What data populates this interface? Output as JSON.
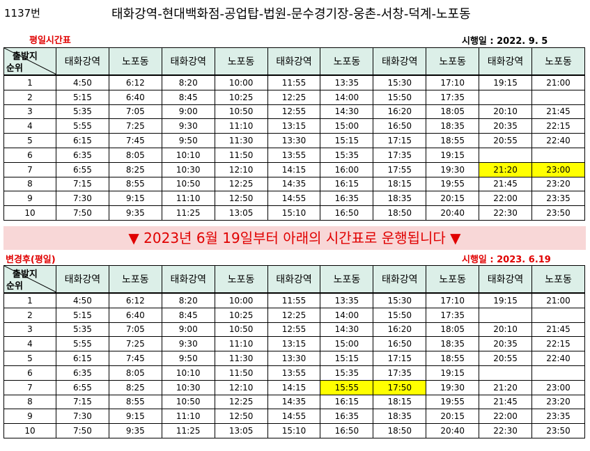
{
  "route_number": "1137번",
  "route_stops": "태화강역-현대백화점-공업탑-법원-문수경기장-웅촌-서창-덕계-노포동",
  "weekday_table": {
    "label": "평일시간표",
    "effective": "시행일 : 2022. 9. 5",
    "corner_top": "출발지",
    "corner_bottom": "순위",
    "headers": [
      "태화강역",
      "노포동",
      "태화강역",
      "노포동",
      "태화강역",
      "노포동",
      "태화강역",
      "노포동",
      "태화강역",
      "노포동"
    ],
    "rows": [
      [
        "1",
        "4:50",
        "6:12",
        "8:20",
        "10:00",
        "11:55",
        "13:35",
        "15:30",
        "17:10",
        "19:15",
        "21:00"
      ],
      [
        "2",
        "5:15",
        "6:40",
        "8:45",
        "10:25",
        "12:25",
        "14:00",
        "15:50",
        "17:35",
        "",
        ""
      ],
      [
        "3",
        "5:35",
        "7:05",
        "9:00",
        "10:50",
        "12:55",
        "14:30",
        "16:20",
        "18:05",
        "20:10",
        "21:45"
      ],
      [
        "4",
        "5:55",
        "7:25",
        "9:30",
        "11:10",
        "13:15",
        "15:00",
        "16:50",
        "18:35",
        "20:35",
        "22:15"
      ],
      [
        "5",
        "6:15",
        "7:45",
        "9:50",
        "11:30",
        "13:30",
        "15:15",
        "17:15",
        "18:55",
        "20:55",
        "22:40"
      ],
      [
        "6",
        "6:35",
        "8:05",
        "10:10",
        "11:50",
        "13:55",
        "15:35",
        "17:35",
        "19:15",
        "",
        ""
      ],
      [
        "7",
        "6:55",
        "8:25",
        "10:30",
        "12:10",
        "14:15",
        "16:00",
        "17:55",
        "19:30",
        "21:20",
        "23:00"
      ],
      [
        "8",
        "7:15",
        "8:55",
        "10:50",
        "12:25",
        "14:35",
        "16:15",
        "18:15",
        "19:55",
        "21:45",
        "23:20"
      ],
      [
        "9",
        "7:30",
        "9:15",
        "11:10",
        "12:50",
        "14:55",
        "16:35",
        "18:35",
        "20:15",
        "22:00",
        "23:35"
      ],
      [
        "10",
        "7:50",
        "9:35",
        "11:25",
        "13:05",
        "15:10",
        "16:50",
        "18:50",
        "20:40",
        "22:30",
        "23:50"
      ]
    ],
    "highlights": [
      [
        6,
        9
      ],
      [
        6,
        10
      ]
    ]
  },
  "notice": "▼ 2023년 6월 19일부터 아래의 시간표로 운행됩니다 ▼",
  "changed_table": {
    "label": "변경후(평일)",
    "effective": "시행일 : 2023. 6.19",
    "corner_top": "출발지",
    "corner_bottom": "순위",
    "headers": [
      "태화강역",
      "노포동",
      "태화강역",
      "노포동",
      "태화강역",
      "노포동",
      "태화강역",
      "노포동",
      "태화강역",
      "노포동"
    ],
    "rows": [
      [
        "1",
        "4:50",
        "6:12",
        "8:20",
        "10:00",
        "11:55",
        "13:35",
        "15:30",
        "17:10",
        "19:15",
        "21:00"
      ],
      [
        "2",
        "5:15",
        "6:40",
        "8:45",
        "10:25",
        "12:25",
        "14:00",
        "15:50",
        "17:35",
        "",
        ""
      ],
      [
        "3",
        "5:35",
        "7:05",
        "9:00",
        "10:50",
        "12:55",
        "14:30",
        "16:20",
        "18:05",
        "20:10",
        "21:45"
      ],
      [
        "4",
        "5:55",
        "7:25",
        "9:30",
        "11:10",
        "13:15",
        "15:00",
        "16:50",
        "18:35",
        "20:35",
        "22:15"
      ],
      [
        "5",
        "6:15",
        "7:45",
        "9:50",
        "11:30",
        "13:30",
        "15:15",
        "17:15",
        "18:55",
        "20:55",
        "22:40"
      ],
      [
        "6",
        "6:35",
        "8:05",
        "10:10",
        "11:50",
        "13:55",
        "15:35",
        "17:35",
        "19:15",
        "",
        ""
      ],
      [
        "7",
        "6:55",
        "8:25",
        "10:30",
        "12:10",
        "14:15",
        "15:55",
        "17:50",
        "19:30",
        "21:20",
        "23:00"
      ],
      [
        "8",
        "7:15",
        "8:55",
        "10:50",
        "12:25",
        "14:35",
        "16:15",
        "18:15",
        "19:55",
        "21:45",
        "23:20"
      ],
      [
        "9",
        "7:30",
        "9:15",
        "11:10",
        "12:50",
        "14:55",
        "16:35",
        "18:35",
        "20:15",
        "22:00",
        "23:35"
      ],
      [
        "10",
        "7:50",
        "9:35",
        "11:25",
        "13:05",
        "15:10",
        "16:50",
        "18:50",
        "20:40",
        "22:30",
        "23:50"
      ]
    ],
    "highlights": [
      [
        6,
        6
      ],
      [
        6,
        7
      ]
    ]
  },
  "colors": {
    "header_bg": "#dcefe8",
    "highlight": "#ffff00",
    "notice_bg": "#f8d7d7",
    "accent_red": "#e00000"
  }
}
